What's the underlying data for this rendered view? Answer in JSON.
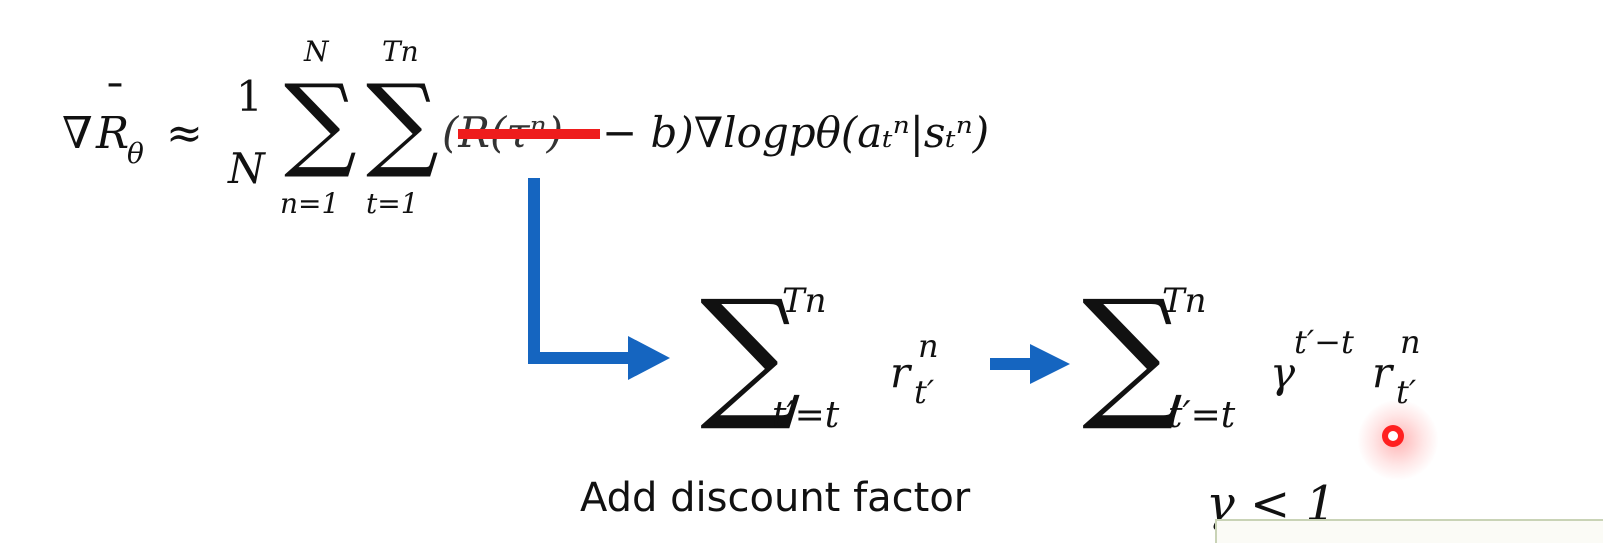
{
  "formula": {
    "lhs_nabla": "∇",
    "lhs_R": "R",
    "lhs_bar": "¯",
    "lhs_sub": "θ",
    "approx": "≈",
    "frac_num": "1",
    "frac_den": "N",
    "sum1": {
      "symbol": "∑",
      "upper": "N",
      "lower": "n=1"
    },
    "sum2": {
      "symbol": "∑",
      "upper": "Tn",
      "lower": "t=1"
    },
    "struck_term": "(R(τⁿ)",
    "rest": "− b)∇logpθ(aₜⁿ|sₜⁿ)"
  },
  "replacement1": {
    "symbol": "∑",
    "upper": "Tn",
    "lower": "t′=t",
    "term": "r",
    "term_sup": "n",
    "term_sub": "t′"
  },
  "replacement2": {
    "symbol": "∑",
    "upper": "Tn",
    "lower": "t′=t",
    "factor": "γ",
    "factor_sup": "t′−t",
    "term": "r",
    "term_sup": "n",
    "term_sub": "t′"
  },
  "caption": "Add discount factor",
  "condition": "γ < 1",
  "colors": {
    "arrow": "#1565c0",
    "strike": "#ee1c1c",
    "cursor": "#ff2020"
  }
}
